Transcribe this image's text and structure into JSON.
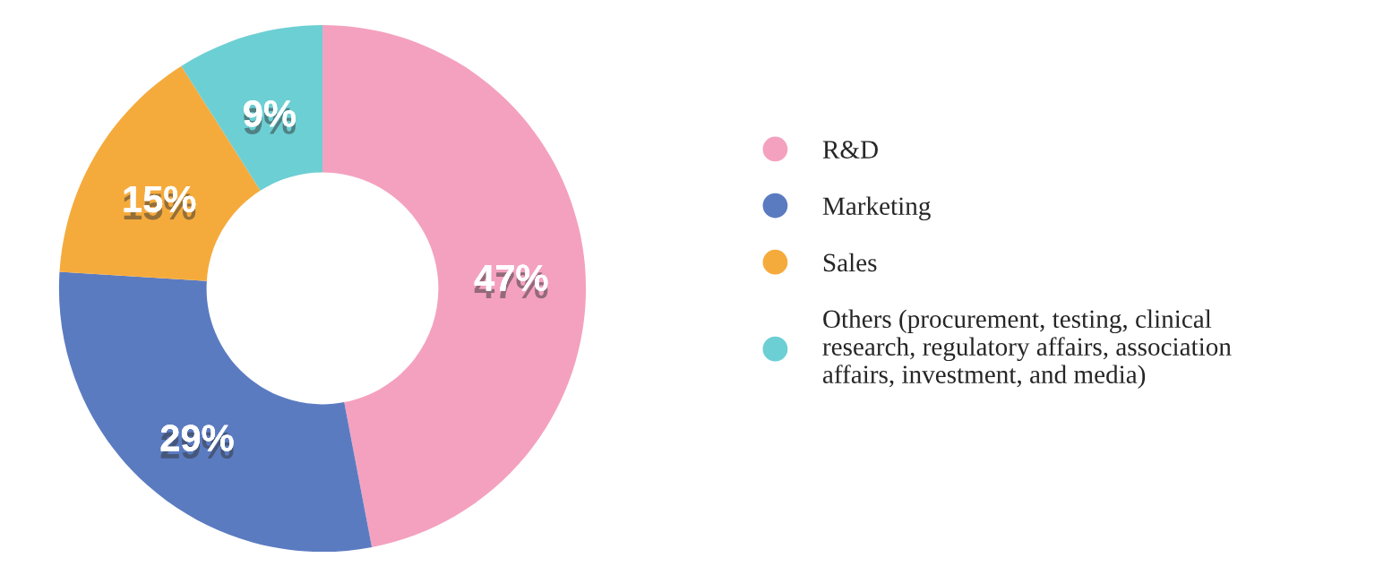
{
  "chart_data": {
    "type": "donut",
    "categories": [
      "R&D",
      "Marketing",
      "Sales",
      "Others (procurement, testing, clinical research, regulatory affairs, association affairs, investment, and media)"
    ],
    "values": [
      47,
      29,
      15,
      9
    ],
    "colors": [
      "#f4a1bf",
      "#5b7bc1",
      "#f5ab3c",
      "#6ccfd4"
    ],
    "value_labels": [
      "47%",
      "29%",
      "15%",
      "9%"
    ],
    "legend": "right"
  }
}
